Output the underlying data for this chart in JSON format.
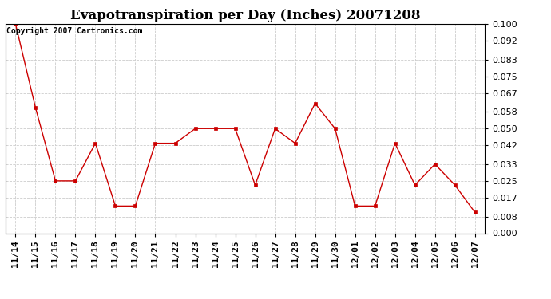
{
  "title": "Evapotranspiration per Day (Inches) 20071208",
  "copyright_text": "Copyright 2007 Cartronics.com",
  "x_labels": [
    "11/14",
    "11/15",
    "11/16",
    "11/17",
    "11/18",
    "11/19",
    "11/20",
    "11/21",
    "11/22",
    "11/23",
    "11/24",
    "11/25",
    "11/26",
    "11/27",
    "11/28",
    "11/29",
    "11/30",
    "12/01",
    "12/02",
    "12/03",
    "12/04",
    "12/05",
    "12/06",
    "12/07"
  ],
  "y_values": [
    0.1,
    0.06,
    0.025,
    0.025,
    0.043,
    0.013,
    0.013,
    0.043,
    0.043,
    0.05,
    0.05,
    0.05,
    0.023,
    0.05,
    0.043,
    0.062,
    0.05,
    0.013,
    0.013,
    0.043,
    0.023,
    0.033,
    0.023,
    0.01
  ],
  "line_color": "#cc0000",
  "marker": "s",
  "marker_size": 3,
  "background_color": "#ffffff",
  "grid_color": "#cccccc",
  "y_ticks": [
    0.0,
    0.008,
    0.017,
    0.025,
    0.033,
    0.042,
    0.05,
    0.058,
    0.067,
    0.075,
    0.083,
    0.092,
    0.1
  ],
  "ylim": [
    0.0,
    0.1
  ],
  "title_fontsize": 12,
  "tick_fontsize": 8,
  "copyright_fontsize": 7
}
